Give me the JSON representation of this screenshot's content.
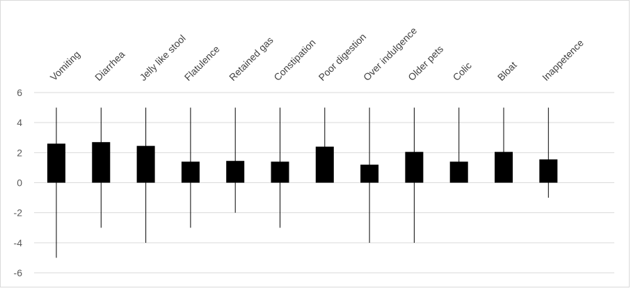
{
  "chart_data": {
    "type": "bar",
    "categories": [
      "Vomiting",
      "Diarrhea",
      "Jelly like stool",
      "Flatulence",
      "Retained gas",
      "Constipation",
      "Poor digestion",
      "Over indulgence",
      "Older pets",
      "Colic",
      "Bloat",
      "Inappetence"
    ],
    "values": [
      2.6,
      2.7,
      2.45,
      1.4,
      1.45,
      1.4,
      2.4,
      1.2,
      2.05,
      1.4,
      2.05,
      1.55
    ],
    "error_max": [
      5,
      5,
      5,
      5,
      5,
      5,
      5,
      5,
      5,
      5,
      5,
      5
    ],
    "error_min": [
      -5,
      -3,
      -4,
      -3,
      -2,
      -3,
      0,
      -4,
      -4,
      0,
      0,
      -1
    ],
    "title": "",
    "xlabel": "",
    "ylabel": "",
    "ylim": [
      -6,
      6
    ],
    "yticks": [
      6,
      4,
      2,
      0,
      -2,
      -4,
      -6
    ],
    "ytick_labels": [
      "6",
      "4",
      "2",
      "0",
      "-2",
      "-4",
      "-6"
    ],
    "grid": true,
    "colors": {
      "bar": "#000000",
      "grid": "#d9d9d9",
      "whisker": "#000000"
    }
  }
}
